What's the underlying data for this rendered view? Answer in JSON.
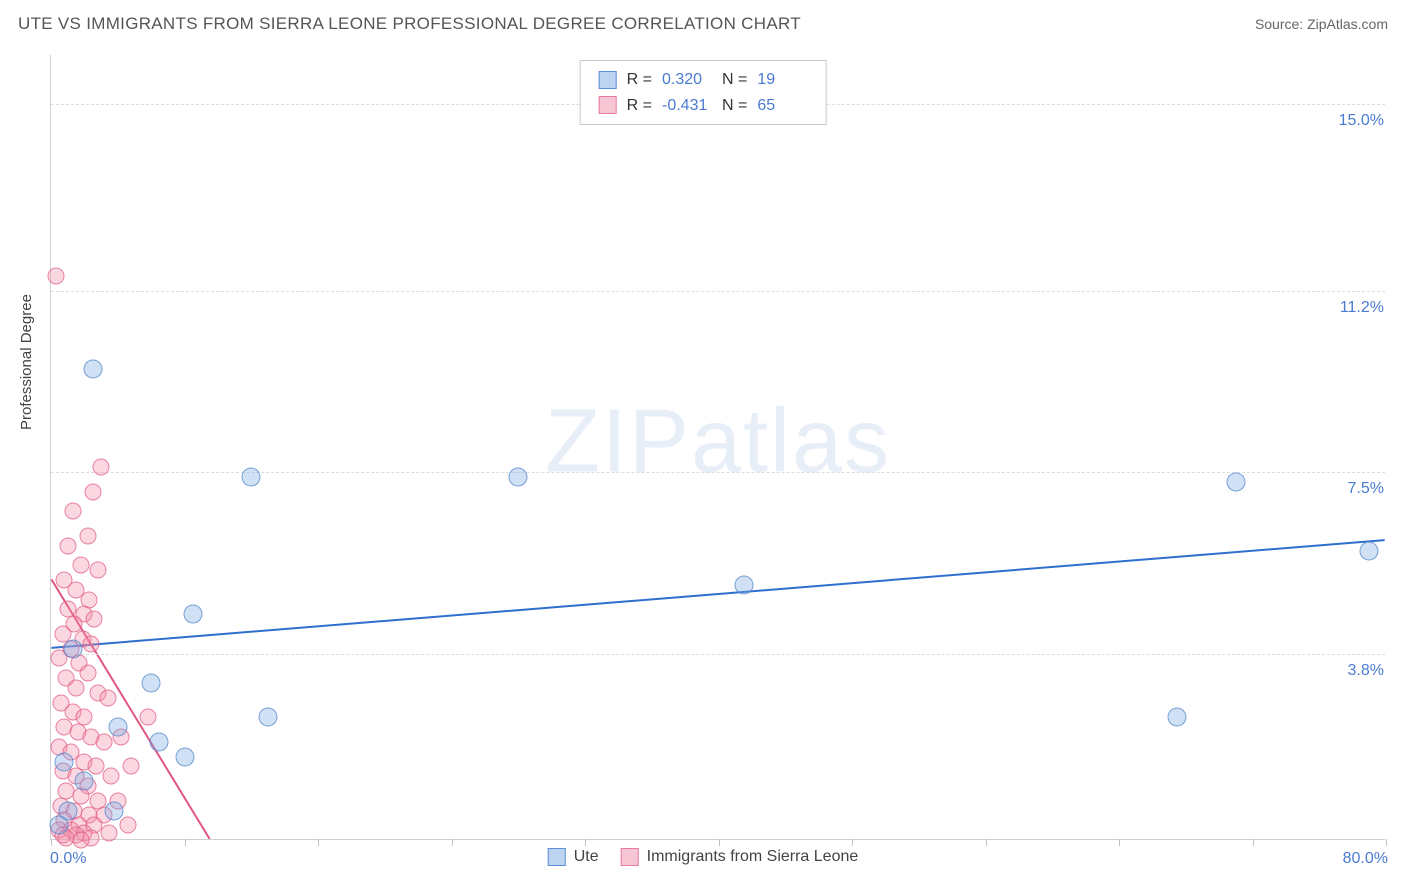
{
  "title": "UTE VS IMMIGRANTS FROM SIERRA LEONE PROFESSIONAL DEGREE CORRELATION CHART",
  "source_label": "Source: ZipAtlas.com",
  "y_axis_label": "Professional Degree",
  "watermark": {
    "part1": "ZIP",
    "part2": "atlas"
  },
  "chart": {
    "type": "scatter",
    "xlim": [
      0,
      80
    ],
    "ylim": [
      0,
      16
    ],
    "x_min_label": "0.0%",
    "x_max_label": "80.0%",
    "y_ticks": [
      {
        "value": 3.8,
        "label": "3.8%"
      },
      {
        "value": 7.5,
        "label": "7.5%"
      },
      {
        "value": 11.2,
        "label": "11.2%"
      },
      {
        "value": 15.0,
        "label": "15.0%"
      }
    ],
    "x_tick_positions": [
      0,
      8,
      16,
      24,
      32,
      40,
      48,
      56,
      64,
      72,
      80
    ],
    "background_color": "#ffffff",
    "grid_color": "#dcdcdc",
    "axis_text_color": "#4a7bd0",
    "series": [
      {
        "name": "Ute",
        "color_fill": "#bcd4f0",
        "color_stroke": "#5c8fd6",
        "marker_radius": 9.5,
        "r_value": "0.320",
        "n_value": "19",
        "trend": {
          "x1": 0,
          "y1": 3.9,
          "x2": 80,
          "y2": 6.1,
          "stroke": "#2f6fd0",
          "width": 2
        },
        "points": [
          {
            "x": 2.5,
            "y": 9.6
          },
          {
            "x": 12.0,
            "y": 7.4
          },
          {
            "x": 28.0,
            "y": 7.4
          },
          {
            "x": 71.0,
            "y": 7.3
          },
          {
            "x": 79.0,
            "y": 5.9
          },
          {
            "x": 41.5,
            "y": 5.2
          },
          {
            "x": 8.5,
            "y": 4.6
          },
          {
            "x": 1.3,
            "y": 3.9
          },
          {
            "x": 6.0,
            "y": 3.2
          },
          {
            "x": 13.0,
            "y": 2.5
          },
          {
            "x": 67.5,
            "y": 2.5
          },
          {
            "x": 4.0,
            "y": 2.3
          },
          {
            "x": 6.5,
            "y": 2.0
          },
          {
            "x": 8.0,
            "y": 1.7
          },
          {
            "x": 0.8,
            "y": 1.6
          },
          {
            "x": 2.0,
            "y": 1.2
          },
          {
            "x": 1.0,
            "y": 0.6
          },
          {
            "x": 3.8,
            "y": 0.6
          },
          {
            "x": 0.5,
            "y": 0.3
          }
        ]
      },
      {
        "name": "Immigrants from Sierra Leone",
        "color_fill": "#f7c6d4",
        "color_stroke": "#e57ba0",
        "marker_radius": 8.5,
        "r_value": "-0.431",
        "n_value": "65",
        "trend": {
          "x1": 0,
          "y1": 5.3,
          "x2": 9.5,
          "y2": 0,
          "stroke": "#e0567f",
          "width": 2
        },
        "points": [
          {
            "x": 0.3,
            "y": 11.5
          },
          {
            "x": 3.0,
            "y": 7.6
          },
          {
            "x": 2.5,
            "y": 7.1
          },
          {
            "x": 1.3,
            "y": 6.7
          },
          {
            "x": 2.2,
            "y": 6.2
          },
          {
            "x": 1.0,
            "y": 6.0
          },
          {
            "x": 1.8,
            "y": 5.6
          },
          {
            "x": 2.8,
            "y": 5.5
          },
          {
            "x": 0.8,
            "y": 5.3
          },
          {
            "x": 1.5,
            "y": 5.1
          },
          {
            "x": 2.3,
            "y": 4.9
          },
          {
            "x": 1.0,
            "y": 4.7
          },
          {
            "x": 2.0,
            "y": 4.6
          },
          {
            "x": 2.6,
            "y": 4.5
          },
          {
            "x": 1.4,
            "y": 4.4
          },
          {
            "x": 0.7,
            "y": 4.2
          },
          {
            "x": 1.9,
            "y": 4.1
          },
          {
            "x": 2.4,
            "y": 4.0
          },
          {
            "x": 1.2,
            "y": 3.9
          },
          {
            "x": 0.5,
            "y": 3.7
          },
          {
            "x": 1.7,
            "y": 3.6
          },
          {
            "x": 2.2,
            "y": 3.4
          },
          {
            "x": 0.9,
            "y": 3.3
          },
          {
            "x": 1.5,
            "y": 3.1
          },
          {
            "x": 2.8,
            "y": 3.0
          },
          {
            "x": 3.4,
            "y": 2.9
          },
          {
            "x": 0.6,
            "y": 2.8
          },
          {
            "x": 1.3,
            "y": 2.6
          },
          {
            "x": 2.0,
            "y": 2.5
          },
          {
            "x": 5.8,
            "y": 2.5
          },
          {
            "x": 0.8,
            "y": 2.3
          },
          {
            "x": 1.6,
            "y": 2.2
          },
          {
            "x": 2.4,
            "y": 2.1
          },
          {
            "x": 4.2,
            "y": 2.1
          },
          {
            "x": 3.2,
            "y": 2.0
          },
          {
            "x": 0.5,
            "y": 1.9
          },
          {
            "x": 1.2,
            "y": 1.8
          },
          {
            "x": 2.0,
            "y": 1.6
          },
          {
            "x": 2.7,
            "y": 1.5
          },
          {
            "x": 4.8,
            "y": 1.5
          },
          {
            "x": 0.7,
            "y": 1.4
          },
          {
            "x": 1.5,
            "y": 1.3
          },
          {
            "x": 3.6,
            "y": 1.3
          },
          {
            "x": 2.2,
            "y": 1.1
          },
          {
            "x": 0.9,
            "y": 1.0
          },
          {
            "x": 1.8,
            "y": 0.9
          },
          {
            "x": 2.8,
            "y": 0.8
          },
          {
            "x": 4.0,
            "y": 0.8
          },
          {
            "x": 0.6,
            "y": 0.7
          },
          {
            "x": 1.4,
            "y": 0.6
          },
          {
            "x": 2.3,
            "y": 0.5
          },
          {
            "x": 3.2,
            "y": 0.5
          },
          {
            "x": 0.8,
            "y": 0.4
          },
          {
            "x": 1.7,
            "y": 0.3
          },
          {
            "x": 2.6,
            "y": 0.3
          },
          {
            "x": 4.6,
            "y": 0.3
          },
          {
            "x": 0.5,
            "y": 0.2
          },
          {
            "x": 1.2,
            "y": 0.2
          },
          {
            "x": 2.0,
            "y": 0.15
          },
          {
            "x": 3.5,
            "y": 0.15
          },
          {
            "x": 0.7,
            "y": 0.1
          },
          {
            "x": 1.5,
            "y": 0.1
          },
          {
            "x": 2.4,
            "y": 0.05
          },
          {
            "x": 0.9,
            "y": 0.05
          },
          {
            "x": 1.8,
            "y": 0.0
          }
        ]
      }
    ]
  },
  "legend": {
    "series1_label": "Ute",
    "series2_label": "Immigrants from Sierra Leone"
  }
}
